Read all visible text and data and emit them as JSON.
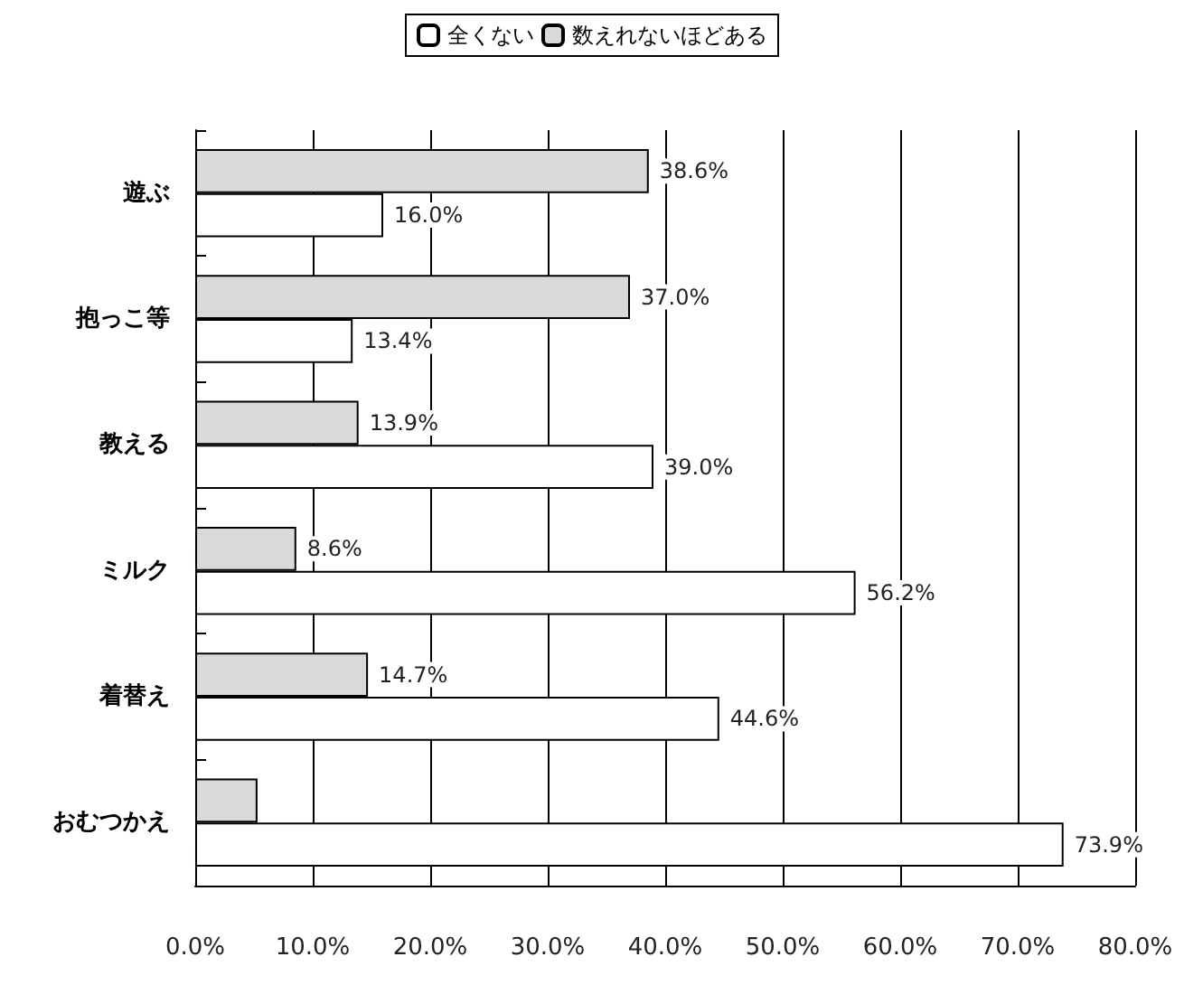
{
  "chart_data": {
    "type": "bar",
    "orientation": "horizontal",
    "categories": [
      "遊ぶ",
      "抱っこ等",
      "教える",
      "ミルク",
      "着替え",
      "おむつかえ"
    ],
    "series": [
      {
        "name": "数えれないほどある",
        "color": "#d9d9d9",
        "values": [
          38.6,
          37.0,
          13.9,
          8.6,
          14.7,
          5.3
        ],
        "value_labels": [
          "38.6%",
          "37.0%",
          "13.9%",
          "8.6%",
          "14.7%",
          null
        ]
      },
      {
        "name": "全くない",
        "color": "#ffffff",
        "values": [
          16.0,
          13.4,
          39.0,
          56.2,
          44.6,
          73.9
        ],
        "value_labels": [
          "16.0%",
          "13.4%",
          "39.0%",
          "56.2%",
          "44.6%",
          "73.9%"
        ]
      }
    ],
    "xlim": [
      0,
      80
    ],
    "xticks": [
      {
        "value": 0,
        "label": "0.0%"
      },
      {
        "value": 10,
        "label": "10.0%"
      },
      {
        "value": 20,
        "label": "20.0%"
      },
      {
        "value": 30,
        "label": "30.0%"
      },
      {
        "value": 40,
        "label": "40.0%"
      },
      {
        "value": 50,
        "label": "50.0%"
      },
      {
        "value": 60,
        "label": "60.0%"
      },
      {
        "value": 70,
        "label": "70.0%"
      },
      {
        "value": 80,
        "label": "80.0%"
      }
    ],
    "grid": "x",
    "legend": "top"
  }
}
